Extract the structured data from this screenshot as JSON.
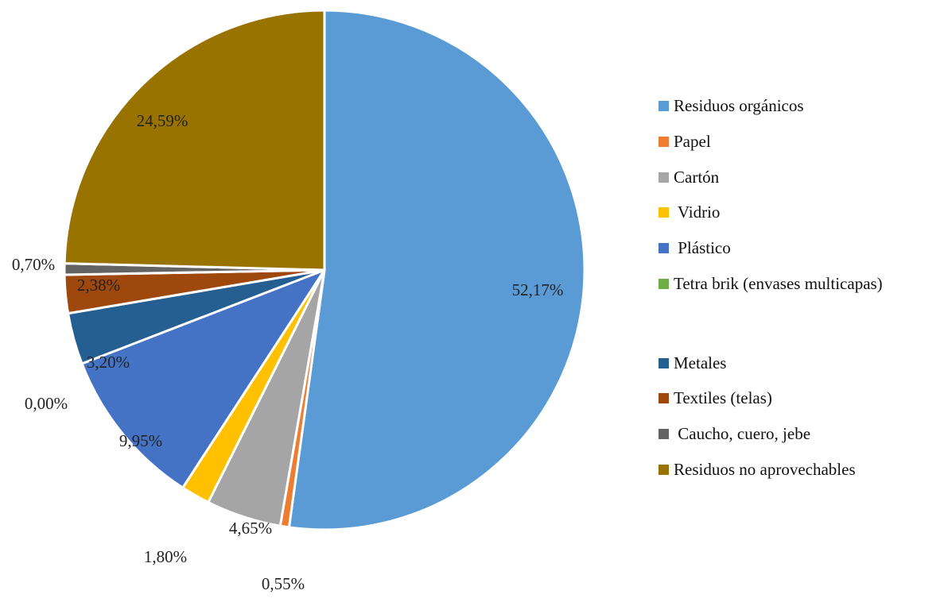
{
  "chart_data": {
    "type": "pie",
    "slices": [
      {
        "name": "Residuos orgánicos",
        "value": 52.17,
        "label": "52,17%",
        "color": "#5B9BD5"
      },
      {
        "name": "Papel",
        "value": 0.55,
        "label": "0,55%",
        "color": "#ED7D31"
      },
      {
        "name": "Cartón",
        "value": 4.65,
        "label": "4,65%",
        "color": "#A5A5A5"
      },
      {
        "name": " Vidrio",
        "value": 1.8,
        "label": "1,80%",
        "color": "#FFC000"
      },
      {
        "name": " Plástico",
        "value": 9.95,
        "label": "9,95%",
        "color": "#4472C4"
      },
      {
        "name": "Tetra brik (envases multicapas)",
        "value": 0.0,
        "label": "0,00%",
        "color": "#70AD47"
      },
      {
        "name": "Metales",
        "value": 3.2,
        "label": "3,20%",
        "color": "#255E91"
      },
      {
        "name": "Textiles (telas)",
        "value": 2.38,
        "label": "2,38%",
        "color": "#9E480E"
      },
      {
        "name": " Caucho, cuero, jebe",
        "value": 0.7,
        "label": "0,70%",
        "color": "#636363"
      },
      {
        "name": "Residuos no aprovechables",
        "value": 24.59,
        "label": "24,59%",
        "color": "#997300"
      }
    ],
    "legend_position": "right"
  }
}
